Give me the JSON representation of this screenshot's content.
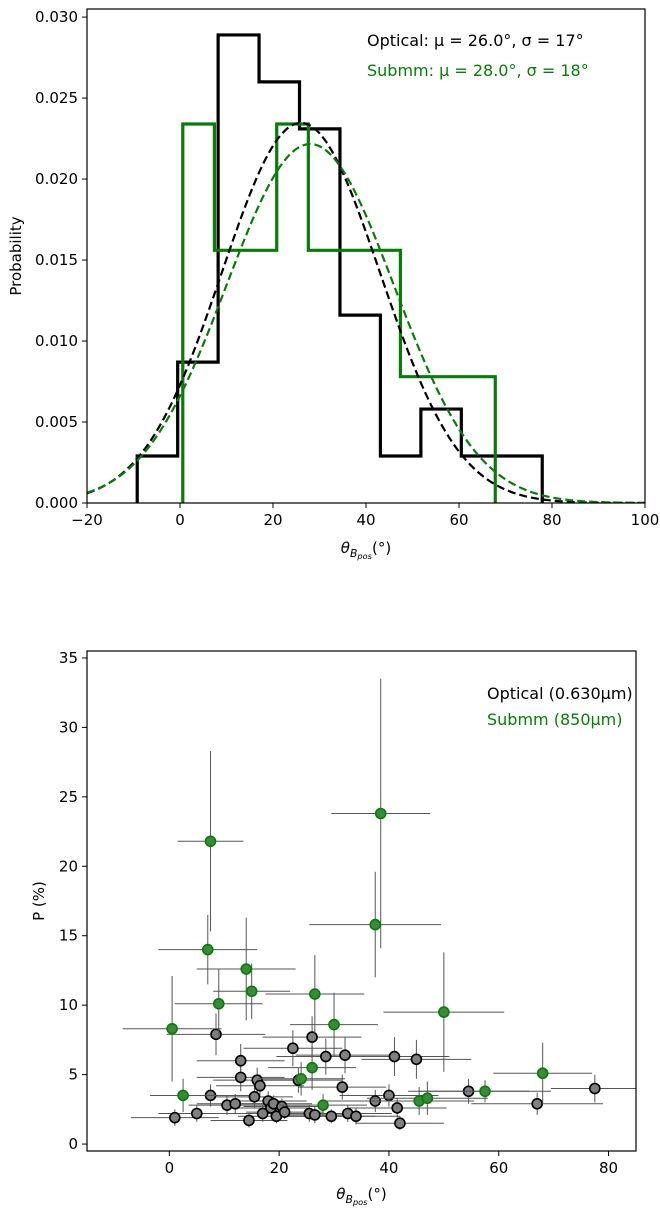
{
  "chart_data": [
    {
      "type": "histogram",
      "xlabel_base": "θ",
      "xlabel_sub1": "B",
      "xlabel_sub2": "pos",
      "xlabel_unit": "(°)",
      "ylabel": "Probability",
      "xlim": [
        -20,
        100
      ],
      "ylim": [
        0,
        0.0305
      ],
      "xticks": [
        -20,
        0,
        20,
        40,
        60,
        80,
        100
      ],
      "xtick_labels": [
        "−20",
        "0",
        "20",
        "40",
        "60",
        "80",
        "100"
      ],
      "yticks": [
        0,
        0.005,
        0.01,
        0.015,
        0.02,
        0.025,
        0.03
      ],
      "ytick_labels": [
        "0.000",
        "0.005",
        "0.010",
        "0.015",
        "0.020",
        "0.025",
        "0.030"
      ],
      "grid": false,
      "legend_position": "top-right",
      "annotations": [
        {
          "text": "Optical: μ = 26.0°, σ = 17°",
          "color": "#000000"
        },
        {
          "text": "Submm: μ = 28.0°, σ = 18°",
          "color": "#0a7a0a"
        }
      ],
      "series": [
        {
          "kind": "histogram",
          "color": "#000000",
          "edges": [
            -9.2,
            -0.5,
            8.2,
            17.0,
            25.7,
            34.4,
            43.1,
            51.8,
            60.5,
            69.2,
            77.9
          ],
          "values": [
            0.0029,
            0.0087,
            0.0289,
            0.026,
            0.0231,
            0.0116,
            0.0029,
            0.0058,
            0.0029,
            0.0029
          ]
        },
        {
          "kind": "histogram",
          "color": "#0a7a0a",
          "edges": [
            0.6,
            7.4,
            20.8,
            27.6,
            47.4,
            67.8
          ],
          "values": [
            0.0234,
            0.0156,
            0.0234,
            0.0156,
            0.0078
          ]
        },
        {
          "kind": "gaussian",
          "mu": 26.0,
          "sigma": 17,
          "color": "#000000",
          "dashed": true
        },
        {
          "kind": "gaussian",
          "mu": 28.0,
          "sigma": 18,
          "color": "#0a7a0a",
          "dashed": true
        }
      ]
    },
    {
      "type": "scatter",
      "xlabel_base": "θ",
      "xlabel_sub1": "B",
      "xlabel_sub2": "pos",
      "xlabel_unit": "(°)",
      "ylabel": "P (%)",
      "xlim": [
        -15,
        85
      ],
      "ylim": [
        -0.5,
        35.5
      ],
      "xticks": [
        0,
        20,
        40,
        60,
        80
      ],
      "xtick_labels": [
        "0",
        "20",
        "40",
        "60",
        "80"
      ],
      "yticks": [
        0,
        5,
        10,
        15,
        20,
        25,
        30,
        35
      ],
      "ytick_labels": [
        "0",
        "5",
        "10",
        "15",
        "20",
        "25",
        "30",
        "35"
      ],
      "grid": false,
      "legend_position": "top-right",
      "legend": [
        {
          "text": "Optical (0.630μm)",
          "color": "#000000"
        },
        {
          "text": "Submm (850μm)",
          "color": "#0a7a0a"
        }
      ],
      "series": [
        {
          "name": "Optical (0.630μm)",
          "face": "#808080",
          "edge": "#000000",
          "points": [
            [
              1.0,
              1.9,
              8,
              0.6
            ],
            [
              5.0,
              2.2,
              7,
              0.6
            ],
            [
              7.5,
              3.5,
              9,
              0.8
            ],
            [
              8.5,
              7.9,
              9,
              1.5
            ],
            [
              10.5,
              2.8,
              7,
              0.7
            ],
            [
              12.0,
              2.9,
              7,
              0.7
            ],
            [
              13.0,
              6.0,
              8,
              1.2
            ],
            [
              13.0,
              4.8,
              8,
              1.0
            ],
            [
              14.5,
              1.7,
              7,
              0.5
            ],
            [
              15.5,
              3.4,
              7,
              0.8
            ],
            [
              16.0,
              4.6,
              8,
              0.9
            ],
            [
              16.5,
              4.2,
              8,
              0.8
            ],
            [
              17.0,
              2.2,
              7,
              0.6
            ],
            [
              18.0,
              3.1,
              7,
              0.7
            ],
            [
              18.5,
              2.6,
              7,
              0.6
            ],
            [
              19.0,
              2.9,
              7,
              0.6
            ],
            [
              19.5,
              2.0,
              7,
              0.5
            ],
            [
              20.5,
              2.7,
              7,
              0.6
            ],
            [
              21.0,
              2.3,
              7,
              0.5
            ],
            [
              22.5,
              6.9,
              9,
              1.3
            ],
            [
              23.5,
              4.6,
              8,
              0.9
            ],
            [
              25.5,
              2.2,
              8,
              0.6
            ],
            [
              26.0,
              7.7,
              9,
              1.5
            ],
            [
              26.5,
              2.1,
              8,
              0.6
            ],
            [
              28.5,
              6.3,
              9,
              1.3
            ],
            [
              29.5,
              2.0,
              8,
              0.5
            ],
            [
              31.5,
              4.1,
              8,
              0.9
            ],
            [
              32.0,
              6.4,
              9,
              1.3
            ],
            [
              32.5,
              2.2,
              8,
              0.6
            ],
            [
              34.0,
              2.0,
              8,
              0.6
            ],
            [
              37.5,
              3.1,
              9,
              0.8
            ],
            [
              40.0,
              3.5,
              9,
              0.8
            ],
            [
              41.0,
              6.3,
              10,
              1.4
            ],
            [
              41.5,
              2.6,
              9,
              0.7
            ],
            [
              42.0,
              1.5,
              8,
              0.5
            ],
            [
              45.0,
              6.1,
              10,
              1.4
            ],
            [
              54.5,
              3.8,
              11,
              0.9
            ],
            [
              67.0,
              2.9,
              12,
              0.8
            ],
            [
              77.5,
              4.0,
              8,
              1.0
            ]
          ]
        },
        {
          "name": "Submm (850μm)",
          "face": "#3a8a3a",
          "edge": "#0a7a0a",
          "points": [
            [
              0.5,
              8.3,
              9,
              3.8
            ],
            [
              2.5,
              3.5,
              6,
              1.2
            ],
            [
              7.0,
              14.0,
              9,
              2.5
            ],
            [
              7.5,
              21.8,
              6,
              6.5
            ],
            [
              9.0,
              10.1,
              8,
              2.5
            ],
            [
              14.0,
              12.6,
              9,
              3.7
            ],
            [
              15.0,
              11.0,
              7,
              2.0
            ],
            [
              24.0,
              4.7,
              8,
              1.2
            ],
            [
              26.0,
              5.5,
              8,
              1.6
            ],
            [
              26.5,
              10.8,
              9,
              2.8
            ],
            [
              28.0,
              2.8,
              8,
              0.8
            ],
            [
              30.0,
              8.6,
              8,
              2.3
            ],
            [
              37.5,
              15.8,
              12,
              3.8
            ],
            [
              38.5,
              23.8,
              9,
              9.7
            ],
            [
              45.5,
              3.1,
              10,
              1.0
            ],
            [
              47.0,
              3.3,
              11,
              1.2
            ],
            [
              50.0,
              9.5,
              11,
              4.3
            ],
            [
              57.5,
              3.8,
              12,
              0.8
            ],
            [
              68.0,
              5.1,
              9,
              2.2
            ]
          ]
        }
      ]
    }
  ]
}
